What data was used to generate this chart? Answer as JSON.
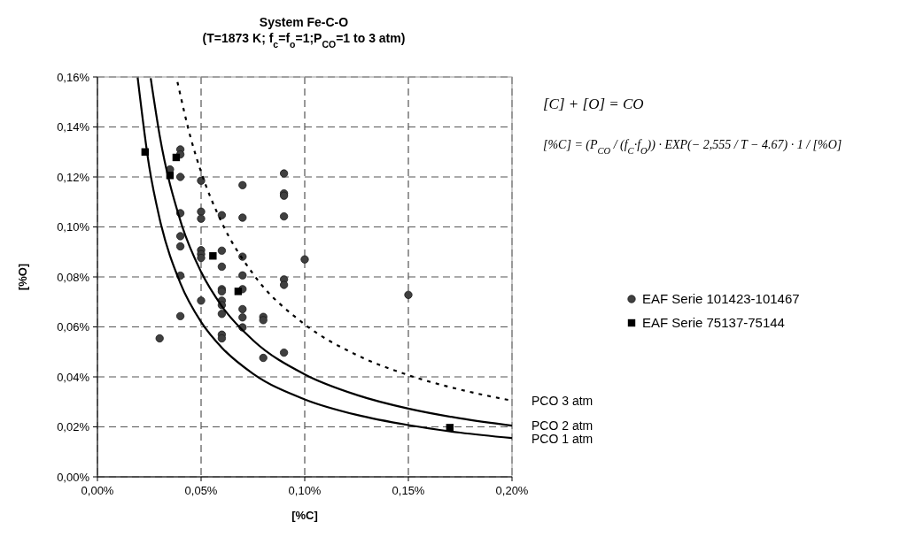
{
  "chart_data": {
    "type": "scatter",
    "title": "System Fe-C-O",
    "subtitle": "(T=1873 K; f$_{c}$=f$_{o}$=1;P$_{CO}$=1 to 3 atm)",
    "xlabel": "[%C]",
    "ylabel": "[%O]",
    "xlim": [
      0,
      0.2
    ],
    "xticks": [
      {
        "value": 0,
        "label": "0,00%"
      },
      {
        "value": 0.05,
        "label": "0,05%"
      },
      {
        "value": 0.1,
        "label": "0,10%"
      },
      {
        "value": 0.15,
        "label": "0,15%"
      },
      {
        "value": 0.2,
        "label": "0,20%"
      }
    ],
    "ylim": [
      0,
      0.16
    ],
    "yticks": [
      {
        "value": 0,
        "label": "0,00%"
      },
      {
        "value": 0.02,
        "label": "0,02%"
      },
      {
        "value": 0.04,
        "label": "0,04%"
      },
      {
        "value": 0.06,
        "label": "0,06%"
      },
      {
        "value": 0.08,
        "label": "0,08%"
      },
      {
        "value": 0.1,
        "label": "0,10%"
      },
      {
        "value": 0.12,
        "label": "0,12%"
      },
      {
        "value": 0.14,
        "label": "0,14%"
      },
      {
        "value": 0.16,
        "label": "0,16%"
      }
    ],
    "grid": true,
    "legend": "right",
    "annotations": [
      "[C] + [O] = CO",
      "[%C] = (P$_{CO}$ / (f$_{C}$·f$_{O}$)) · EXP(− 2,555 / T − 4.67) · 1 / [%O]"
    ],
    "series": [
      {
        "name": "EAF Serie 101423-101467",
        "marker": "circle",
        "color": "#404040",
        "x": [
          0.04,
          0.04,
          0.035,
          0.04,
          0.05,
          0.07,
          0.09,
          0.09,
          0.09,
          0.04,
          0.05,
          0.05,
          0.06,
          0.07,
          0.09,
          0.04,
          0.04,
          0.05,
          0.05,
          0.05,
          0.06,
          0.06,
          0.07,
          0.1,
          0.04,
          0.07,
          0.09,
          0.09,
          0.07,
          0.06,
          0.06,
          0.05,
          0.06,
          0.06,
          0.07,
          0.07,
          0.06,
          0.04,
          0.08,
          0.08,
          0.07,
          0.06,
          0.06,
          0.03,
          0.09,
          0.08,
          0.15
        ],
        "values": [
          0.131,
          0.129,
          0.123,
          0.12,
          0.1185,
          0.1167,
          0.1214,
          0.1134,
          0.1125,
          0.1055,
          0.1061,
          0.1033,
          0.1047,
          0.1037,
          0.1042,
          0.0963,
          0.0922,
          0.0907,
          0.0891,
          0.0876,
          0.0905,
          0.0841,
          0.0881,
          0.087,
          0.0805,
          0.0806,
          0.079,
          0.0768,
          0.0751,
          0.0751,
          0.0742,
          0.0705,
          0.0705,
          0.0687,
          0.0671,
          0.0638,
          0.0652,
          0.0643,
          0.064,
          0.0627,
          0.0598,
          0.0569,
          0.0554,
          0.0554,
          0.0497,
          0.0476,
          0.0728
        ]
      },
      {
        "name": "EAF Serie 75137-75144",
        "marker": "square",
        "color": "#000000",
        "x": [
          0.023,
          0.038,
          0.035,
          0.0557,
          0.0679,
          0.17
        ],
        "values": [
          0.13,
          0.1278,
          0.1206,
          0.0884,
          0.0742,
          0.0197
        ]
      },
      {
        "name": "PCO 3 atm",
        "type": "line",
        "marker": "none",
        "line_style": "dotted",
        "color": "#000000",
        "x": [
          0.0386,
          0.045,
          0.05,
          0.06,
          0.075,
          0.1,
          0.125,
          0.15,
          0.175,
          0.2
        ],
        "values": [
          0.158,
          0.1356,
          0.122,
          0.1017,
          0.0813,
          0.061,
          0.0488,
          0.0407,
          0.0349,
          0.0305
        ]
      },
      {
        "name": "PCO 2 atm",
        "type": "line",
        "marker": "none",
        "line_style": "solid",
        "color": "#000000",
        "x": [
          0.0257,
          0.03,
          0.04,
          0.05,
          0.06,
          0.075,
          0.1,
          0.125,
          0.15,
          0.175,
          0.2
        ],
        "values": [
          0.1595,
          0.1367,
          0.1025,
          0.082,
          0.0683,
          0.0547,
          0.041,
          0.0328,
          0.0273,
          0.0234,
          0.0205
        ]
      },
      {
        "name": "PCO 1 atm",
        "type": "line",
        "marker": "none",
        "line_style": "solid",
        "color": "#000000",
        "x": [
          0.0194,
          0.025,
          0.03,
          0.04,
          0.05,
          0.06,
          0.075,
          0.1,
          0.125,
          0.15,
          0.175,
          0.2
        ],
        "values": [
          0.1598,
          0.124,
          0.1033,
          0.0775,
          0.062,
          0.0517,
          0.0413,
          0.031,
          0.0248,
          0.0207,
          0.0177,
          0.0155
        ]
      }
    ]
  }
}
